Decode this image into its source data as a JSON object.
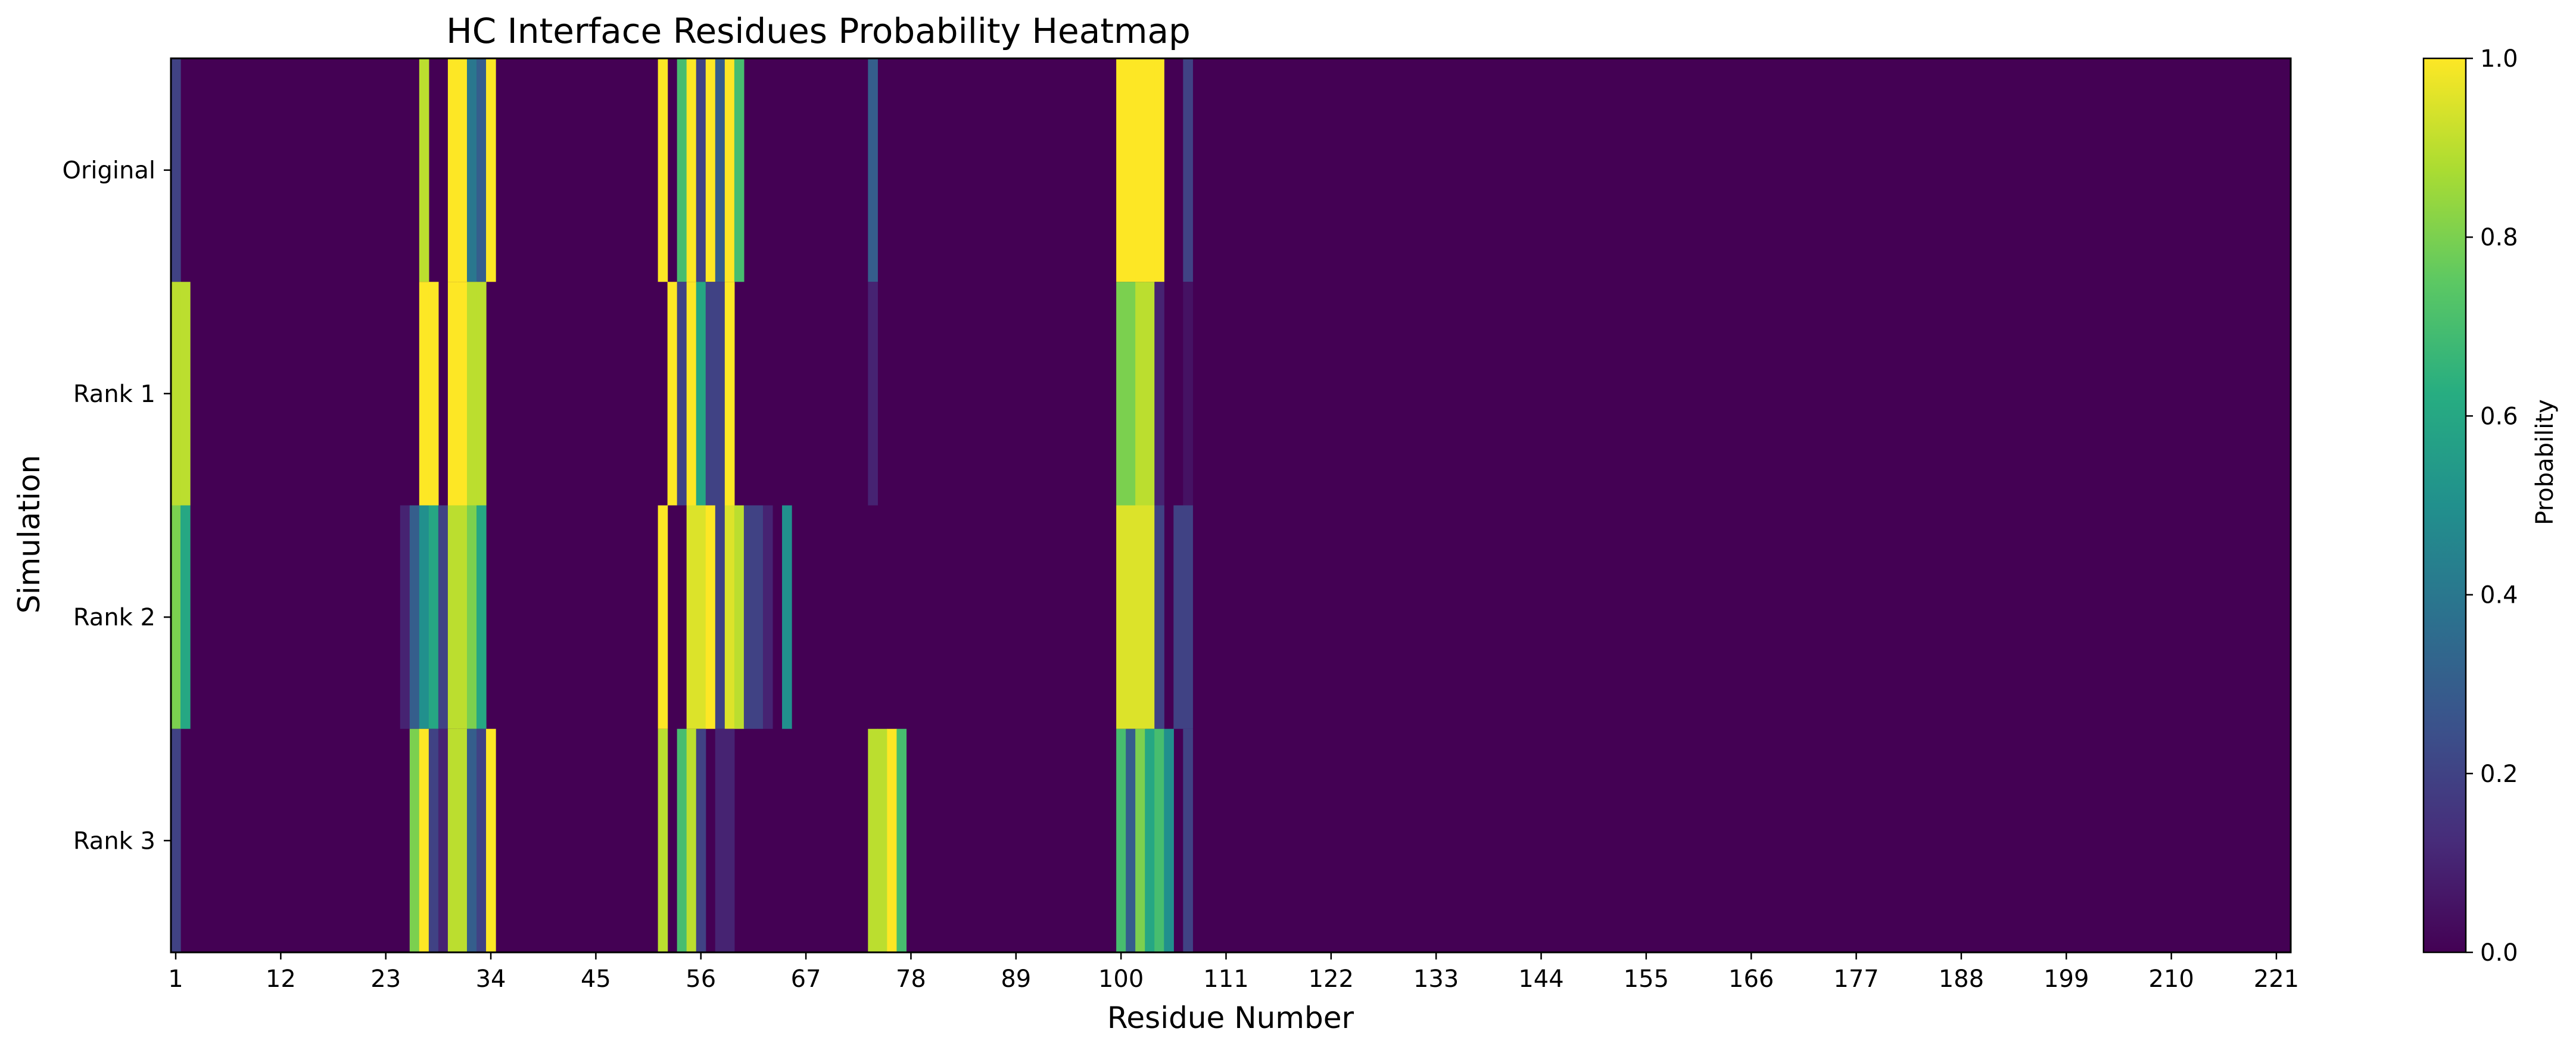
{
  "chart_data": {
    "type": "heatmap",
    "title": "HC Interface Residues Probability Heatmap",
    "xlabel": "Residue Number",
    "ylabel": "Simulation",
    "colorbar_label": "Probability",
    "colormap": "viridis",
    "value_range": [
      0,
      1
    ],
    "colorbar_ticks": [
      "0.0",
      "0.2",
      "0.4",
      "0.6",
      "0.8",
      "1.0"
    ],
    "x_range": [
      1,
      222
    ],
    "x_ticks": [
      "1",
      "12",
      "23",
      "34",
      "45",
      "56",
      "67",
      "78",
      "89",
      "100",
      "111",
      "122",
      "133",
      "144",
      "155",
      "166",
      "177",
      "188",
      "199",
      "210",
      "221"
    ],
    "rows": [
      "Original",
      "Rank 1",
      "Rank 2",
      "Rank 3"
    ],
    "background_value": 0.0,
    "cells": [
      {
        "row": "Original",
        "values": {
          "1": 0.2,
          "27": 0.9,
          "30": 1.0,
          "31": 1.0,
          "32": 0.4,
          "33": 0.3,
          "34": 1.0,
          "52": 1.0,
          "54": 0.7,
          "55": 1.0,
          "56": 0.2,
          "57": 1.0,
          "58": 0.3,
          "59": 1.0,
          "60": 0.7,
          "74": 0.3,
          "100": 1.0,
          "101": 1.0,
          "102": 1.0,
          "103": 1.0,
          "104": 1.0,
          "107": 0.2
        }
      },
      {
        "row": "Rank 1",
        "values": {
          "1": 0.9,
          "2": 0.9,
          "27": 1.0,
          "28": 1.0,
          "30": 1.0,
          "31": 1.0,
          "32": 0.9,
          "33": 0.9,
          "53": 1.0,
          "54": 0.2,
          "55": 1.0,
          "56": 0.6,
          "57": 0.2,
          "58": 0.2,
          "59": 1.0,
          "74": 0.1,
          "100": 0.8,
          "101": 0.8,
          "102": 0.9,
          "103": 0.9,
          "104": 0.1,
          "107": 0.05
        }
      },
      {
        "row": "Rank 2",
        "values": {
          "1": 0.8,
          "2": 0.6,
          "25": 0.1,
          "26": 0.3,
          "27": 0.5,
          "28": 0.6,
          "29": 0.2,
          "30": 0.9,
          "31": 0.9,
          "32": 0.8,
          "33": 0.6,
          "52": 1.0,
          "55": 0.95,
          "56": 0.95,
          "57": 1.0,
          "58": 0.2,
          "59": 0.95,
          "60": 0.9,
          "61": 0.2,
          "62": 0.2,
          "63": 0.1,
          "65": 0.5,
          "100": 0.95,
          "101": 0.95,
          "102": 0.95,
          "103": 0.95,
          "104": 0.2,
          "106": 0.2,
          "107": 0.2
        }
      },
      {
        "row": "Rank 3",
        "values": {
          "1": 0.2,
          "26": 0.8,
          "27": 1.0,
          "28": 0.2,
          "29": 0.1,
          "30": 0.9,
          "31": 0.9,
          "32": 0.3,
          "33": 0.2,
          "34": 1.0,
          "52": 0.9,
          "54": 0.7,
          "55": 0.9,
          "56": 0.2,
          "58": 0.1,
          "59": 0.1,
          "74": 0.9,
          "75": 0.9,
          "76": 1.0,
          "77": 0.7,
          "100": 0.7,
          "101": 0.3,
          "102": 0.8,
          "103": 0.6,
          "104": 0.7,
          "105": 0.5,
          "107": 0.2
        }
      }
    ]
  }
}
